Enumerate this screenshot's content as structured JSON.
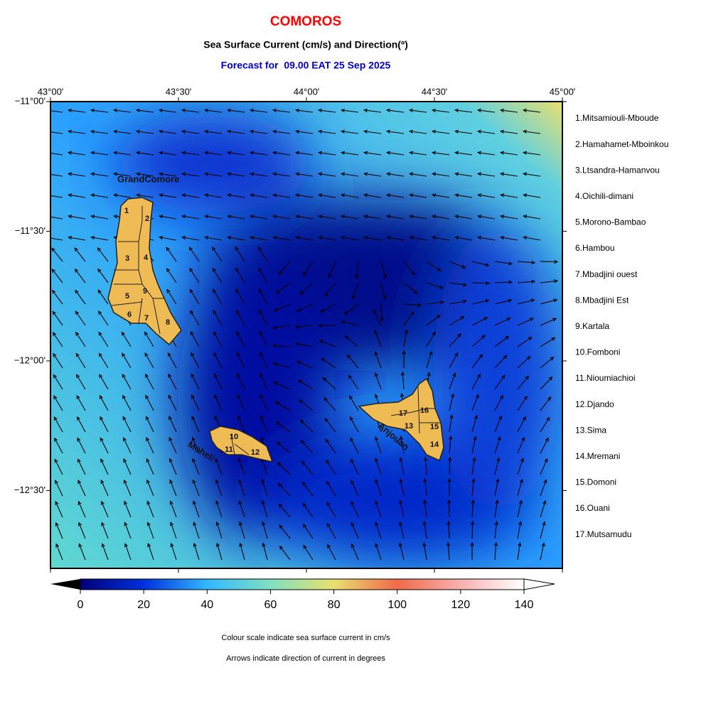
{
  "header": {
    "title": "COMOROS",
    "subtitle": "Sea Surface Current (cm/s) and Direction(º)",
    "forecast": "Forecast for  09.00 EAT 25 Sep 2025"
  },
  "map": {
    "lon_range": [
      43,
      45
    ],
    "lat_range": [
      -12.8,
      -11
    ],
    "lon_ticks": [
      {
        "value": 43,
        "label": "43°00'"
      },
      {
        "value": 43.5,
        "label": "43°30'"
      },
      {
        "value": 44,
        "label": "44°00'"
      },
      {
        "value": 44.5,
        "label": "44°30'"
      },
      {
        "value": 45,
        "label": "45°00'"
      }
    ],
    "lat_ticks": [
      {
        "value": -11,
        "label": "−11°00'"
      },
      {
        "value": -11.5,
        "label": "−11°30'"
      },
      {
        "value": -12,
        "label": "−12°00'"
      },
      {
        "value": -12.5,
        "label": "−12°30'"
      }
    ],
    "islands": [
      {
        "name": "GrandComore",
        "districts": [
          "1",
          "2",
          "3",
          "4",
          "5",
          "6",
          "7",
          "8",
          "9"
        ]
      },
      {
        "name": "Moheli",
        "districts": [
          "10",
          "11",
          "12"
        ]
      },
      {
        "name": "Anjouan",
        "districts": [
          "13",
          "14",
          "15",
          "16",
          "17"
        ]
      }
    ]
  },
  "legend": [
    "1.Mitsamiouli-Mboude",
    "2.Hamahamet-Mboinkou",
    "3.Ltsandra-Hamanvou",
    "4.Oichili-dimani",
    "5.Morono-Bambao",
    "6.Hambou",
    "7.Mbadjini ouest",
    "8.Mbadjini Est",
    "9.Kartala",
    "10.Fomboni",
    "11.Nioumiachioi",
    "12.Djando",
    "13.Sima",
    "14.Mremani",
    "15.Domoni",
    "16.Ouani",
    "17.Mutsamudu"
  ],
  "colorbar": {
    "range": [
      0,
      140
    ],
    "ticks": [
      0,
      20,
      40,
      60,
      80,
      100,
      120,
      140
    ]
  },
  "notes": [
    "Colour scale indicate sea surface current in cm/s",
    "Arrows indicate direction of current in degrees"
  ]
}
